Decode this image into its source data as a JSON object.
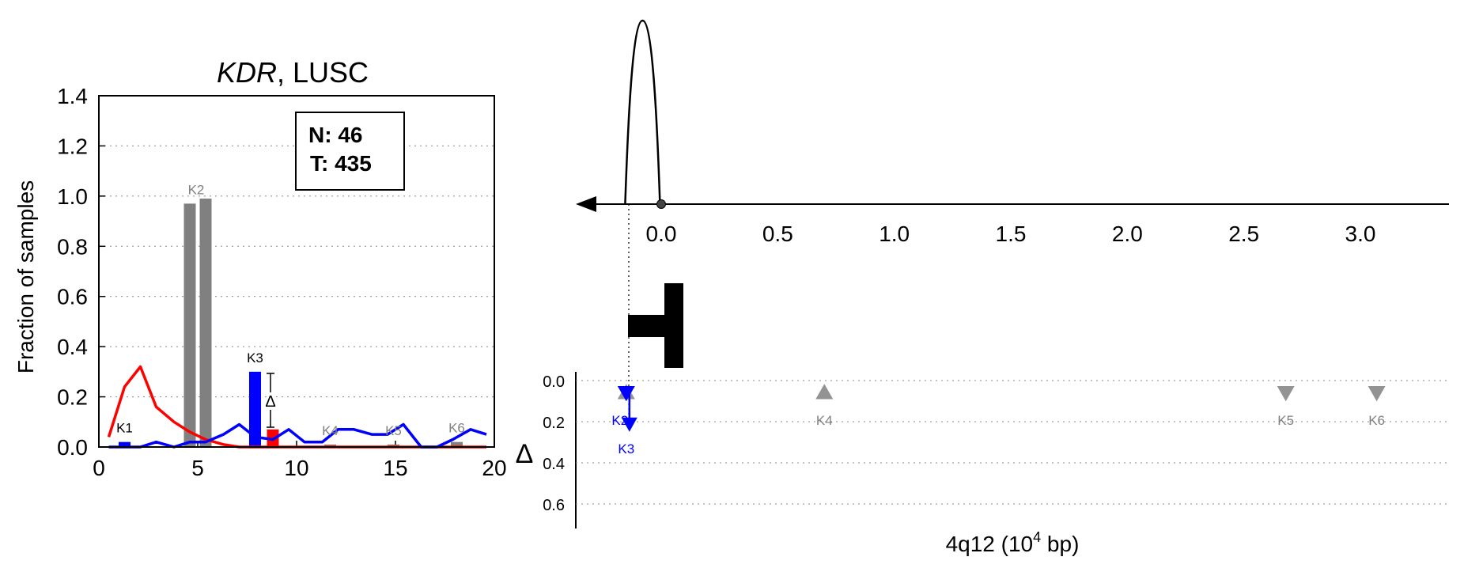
{
  "left_panel": {
    "title_gene": "KDR",
    "title_rest": ", LUSC",
    "ylabel": "Fraction of samples",
    "legend_n": "N: 46",
    "legend_t": "T: 435",
    "delta_symbol": "Δ"
  },
  "right_panel": {
    "xlabel_main": "4q12 (10",
    "xlabel_sup": "4",
    "xlabel_end": " bp)",
    "delta_axis_label": "Δ"
  },
  "colors": {
    "normal": "#ff0000",
    "tumor": "#0000ff",
    "gray": "#808080",
    "axis": "#000000"
  },
  "chart_data": [
    {
      "type": "bar",
      "title": "KDR, LUSC",
      "xlabel": "",
      "ylabel": "Fraction of samples",
      "xlim": [
        0,
        20
      ],
      "ylim": [
        0,
        1.4
      ],
      "xticks": [
        "0",
        "5",
        "10",
        "15",
        "20"
      ],
      "yticks": [
        "0.0",
        "0.2",
        "0.4",
        "0.6",
        "0.8",
        "1.0",
        "1.2",
        "1.4"
      ],
      "grid": true,
      "legend_placement": "top-right",
      "series": [
        {
          "name": "N",
          "kind": "line",
          "color": "#ff0000",
          "x": [
            0.5,
            1.3,
            2.1,
            2.9,
            3.8,
            4.6,
            5.4,
            6.3,
            7.1,
            7.9,
            8.8,
            9.6,
            10.4,
            11.3,
            12.1,
            12.9,
            13.8,
            14.6,
            15.4,
            16.3,
            17.1,
            17.9,
            18.8,
            19.6
          ],
          "y": [
            0.04,
            0.24,
            0.32,
            0.16,
            0.1,
            0.06,
            0.03,
            0.01,
            0,
            0,
            0,
            0,
            0,
            0,
            0,
            0,
            0,
            0,
            0,
            0,
            0,
            0,
            0,
            0
          ]
        },
        {
          "name": "T",
          "kind": "line",
          "color": "#0000ff",
          "x": [
            0.5,
            1.3,
            2.1,
            2.9,
            3.8,
            4.6,
            5.4,
            6.3,
            7.1,
            7.9,
            8.8,
            9.6,
            10.4,
            11.3,
            12.1,
            12.9,
            13.8,
            14.6,
            15.4,
            16.3,
            17.1,
            17.9,
            18.8,
            19.6
          ],
          "y": [
            0,
            0,
            0,
            0.02,
            0,
            0.02,
            0.02,
            0.05,
            0.09,
            0.04,
            0.03,
            0.07,
            0.02,
            0.02,
            0.07,
            0.07,
            0.05,
            0.05,
            0.09,
            0,
            0,
            0.03,
            0.07,
            0.05
          ]
        }
      ],
      "bars": [
        {
          "label": "K1",
          "x": 1.3,
          "y": 0.02,
          "color": "#0000ff",
          "label_color": "#000000"
        },
        {
          "label": "K2",
          "x": 4.6,
          "y": 0.97,
          "color": "#808080",
          "label_color": "#808080"
        },
        {
          "label": "K2",
          "x": 5.4,
          "y": 0.99,
          "color": "#808080",
          "label_color": "#808080"
        },
        {
          "label": "K3",
          "x": 7.9,
          "y": 0.3,
          "color": "#0000ff",
          "label_color": "#000000"
        },
        {
          "label": "K3",
          "x": 8.8,
          "y": 0.07,
          "color": "#ff0000",
          "label_color": "#000000"
        },
        {
          "label": "K4",
          "x": 11.7,
          "y": 0.01,
          "color": "#808080",
          "label_color": "#808080"
        },
        {
          "label": "K5",
          "x": 14.9,
          "y": 0.01,
          "color": "#808080",
          "label_color": "#808080"
        },
        {
          "label": "K6",
          "x": 18.1,
          "y": 0.02,
          "color": "#808080",
          "label_color": "#808080"
        }
      ],
      "text_labels": [
        "K1",
        "K2",
        "K3",
        "K4",
        "K5",
        "K6"
      ],
      "annotations": [
        "Δ"
      ]
    },
    {
      "type": "line",
      "title": "",
      "xlabel": "4q12 (10^4 bp)",
      "ylabel": "",
      "xlim": [
        -0.35,
        3.25
      ],
      "xticks": [
        "0.0",
        "0.5",
        "1.0",
        "1.5",
        "2.0",
        "2.5",
        "3.0"
      ],
      "grid": false,
      "description_values": {
        "peak_center_x": -0.08,
        "peak_height_relative": 1.0,
        "gene_start_x": -0.15,
        "origin_marker_x": 0.0,
        "strand": "reverse"
      }
    },
    {
      "type": "scatter",
      "title": "",
      "xlabel": "",
      "ylabel": "Δ",
      "xlim": [
        -0.35,
        3.25
      ],
      "ylim": [
        0.7,
        0
      ],
      "yticks": [
        "0.0",
        "0.2",
        "0.4",
        "0.6"
      ],
      "grid": true,
      "points": [
        {
          "label": "K2",
          "x": -0.15,
          "y": 0.02,
          "marker": "triangle-up",
          "color": "#808080"
        },
        {
          "label": "K3",
          "x": -0.15,
          "y": 0.02,
          "marker": "triangle-down",
          "color": "#0000ff",
          "arrow_to": 0.18
        },
        {
          "label": "K4",
          "x": 0.7,
          "y": 0.02,
          "marker": "triangle-up",
          "color": "#808080"
        },
        {
          "label": "K5",
          "x": 2.68,
          "y": 0.02,
          "marker": "triangle-down",
          "color": "#808080"
        },
        {
          "label": "K6",
          "x": 3.07,
          "y": 0.02,
          "marker": "triangle-down",
          "color": "#808080"
        }
      ],
      "point_labels": [
        {
          "text": "K2",
          "color": "#0000ff"
        },
        {
          "text": "K3",
          "color": "#0000ff"
        },
        {
          "text": "K4",
          "color": "#808080"
        },
        {
          "text": "K5",
          "color": "#808080"
        },
        {
          "text": "K6",
          "color": "#808080"
        }
      ]
    }
  ]
}
